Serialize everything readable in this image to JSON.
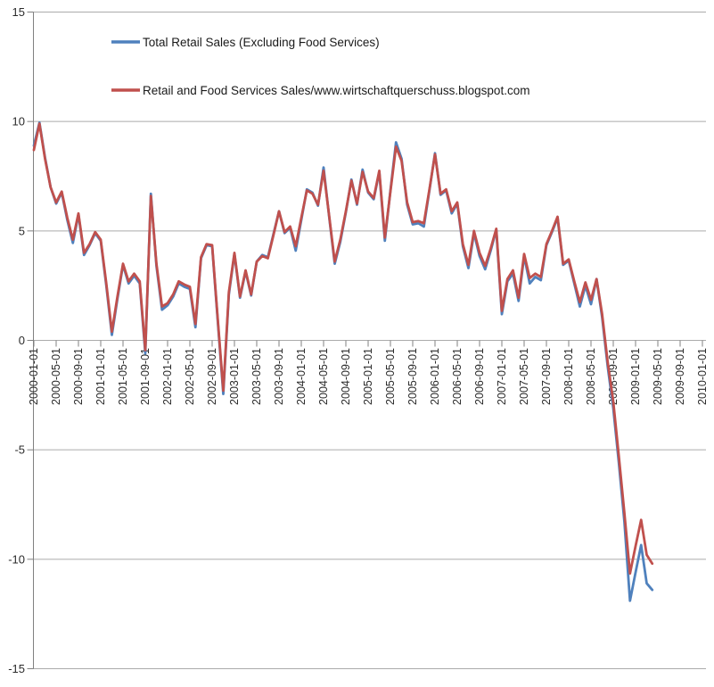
{
  "chart_data": {
    "type": "line",
    "title": "",
    "x_start": "2000-01",
    "x_frequency": "monthly",
    "x_tick_step_months": 4,
    "x_tick_labels": [
      "2000-01-01",
      "2000-05-01",
      "2000-09-01",
      "2001-01-01",
      "2001-05-01",
      "2001-09-01",
      "2002-01-01",
      "2002-05-01",
      "2002-09-01",
      "2003-01-01",
      "2003-05-01",
      "2003-09-01",
      "2004-01-01",
      "2004-05-01",
      "2004-09-01",
      "2005-01-01",
      "2005-05-01",
      "2005-09-01",
      "2006-01-01",
      "2006-05-01",
      "2006-09-01",
      "2007-01-01",
      "2007-05-01",
      "2007-09-01",
      "2008-01-01",
      "2008-05-01",
      "2008-09-01",
      "2009-01-01",
      "2009-05-01",
      "2009-09-01",
      "2010-01-01"
    ],
    "y_ticks": [
      15,
      10,
      5,
      0,
      -5,
      -10,
      -15
    ],
    "y_tick_labels": [
      "15",
      "10",
      "5",
      "0",
      "-5",
      "-10",
      "-15"
    ],
    "ylim": [
      -15,
      15
    ],
    "grid": "horizontal gridlines every 5 units",
    "legend_position": "top-left inside plot area",
    "series": [
      {
        "name": "Total Retail Sales (Excluding Food Services)",
        "color": "#4F81BD",
        "values": [
          8.9,
          9.95,
          8.35,
          7.0,
          6.25,
          6.75,
          5.5,
          4.45,
          5.75,
          3.9,
          4.35,
          4.9,
          4.55,
          2.5,
          0.25,
          1.9,
          3.45,
          2.6,
          2.95,
          2.6,
          -0.6,
          6.7,
          3.4,
          1.4,
          1.6,
          2.0,
          2.6,
          2.45,
          2.35,
          0.6,
          3.75,
          4.35,
          4.3,
          0.9,
          -2.45,
          2.1,
          3.95,
          1.95,
          3.15,
          2.05,
          3.6,
          3.9,
          3.8,
          4.85,
          5.9,
          4.9,
          5.15,
          4.1,
          5.5,
          6.9,
          6.75,
          6.15,
          7.9,
          5.65,
          3.5,
          4.5,
          5.85,
          7.35,
          6.2,
          7.8,
          6.75,
          6.45,
          7.7,
          4.55,
          6.85,
          9.05,
          8.3,
          6.2,
          5.3,
          5.35,
          5.2,
          6.85,
          8.55,
          6.65,
          6.85,
          5.8,
          6.25,
          4.3,
          3.3,
          4.9,
          3.85,
          3.25,
          4.1,
          5.05,
          1.2,
          2.7,
          3.05,
          1.8,
          3.85,
          2.6,
          2.9,
          2.75,
          4.35,
          4.95,
          5.6,
          3.45,
          3.65,
          2.6,
          1.55,
          2.5,
          1.65,
          2.8,
          1.05,
          -1.2,
          -3.1,
          -5.6,
          -8.3,
          -11.9,
          -10.6,
          -9.35,
          -11.1,
          -11.4
        ]
      },
      {
        "name": "Retail and Food Services Sales/www.wirtschaftquerschuss.blogspot.com",
        "color": "#C0504D",
        "values": [
          8.7,
          9.9,
          8.3,
          7.0,
          6.3,
          6.8,
          5.6,
          4.6,
          5.8,
          4.0,
          4.4,
          4.95,
          4.6,
          2.6,
          0.4,
          2.0,
          3.5,
          2.7,
          3.05,
          2.7,
          -0.45,
          6.6,
          3.5,
          1.55,
          1.7,
          2.1,
          2.7,
          2.55,
          2.45,
          0.75,
          3.8,
          4.4,
          4.35,
          1.0,
          -2.3,
          2.2,
          4.0,
          2.0,
          3.2,
          2.1,
          3.6,
          3.85,
          3.75,
          4.8,
          5.9,
          4.95,
          5.2,
          4.3,
          5.6,
          6.85,
          6.7,
          6.2,
          7.75,
          5.7,
          3.6,
          4.6,
          5.9,
          7.3,
          6.25,
          7.7,
          6.8,
          6.5,
          7.75,
          4.7,
          6.8,
          8.85,
          8.2,
          6.3,
          5.4,
          5.45,
          5.35,
          6.9,
          8.5,
          6.7,
          6.9,
          5.9,
          6.3,
          4.4,
          3.45,
          5.0,
          4.0,
          3.4,
          4.2,
          5.1,
          1.35,
          2.8,
          3.2,
          1.95,
          3.95,
          2.85,
          3.05,
          2.9,
          4.4,
          5.0,
          5.65,
          3.5,
          3.7,
          2.7,
          1.75,
          2.65,
          1.85,
          2.8,
          1.2,
          -1.0,
          -2.8,
          -5.3,
          -7.9,
          -10.65,
          -9.4,
          -8.2,
          -9.8,
          -10.2
        ]
      }
    ]
  },
  "colors": {
    "series_blue": "#4F81BD",
    "series_red": "#C0504D",
    "gridline": "#ababab",
    "axis": "#808080",
    "tick_label": "#2b2b2b",
    "background": "#ffffff"
  }
}
